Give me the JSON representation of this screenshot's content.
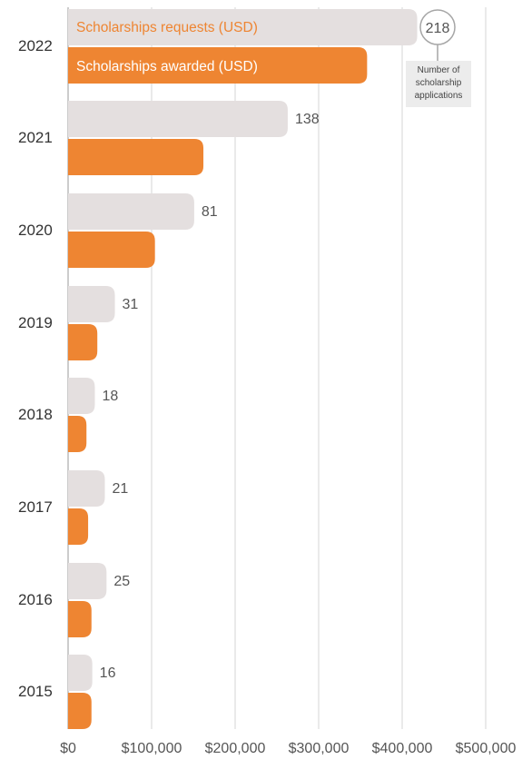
{
  "chart_data": {
    "type": "bar",
    "orientation": "horizontal",
    "categories": [
      "2022",
      "2021",
      "2020",
      "2019",
      "2018",
      "2017",
      "2016",
      "2015"
    ],
    "series": [
      {
        "name": "Scholarships requests (USD)",
        "color": "#e4dfdf",
        "values": [
          418000,
          263000,
          151000,
          56000,
          32000,
          44000,
          46000,
          29000
        ],
        "counts": [
          218,
          138,
          81,
          31,
          18,
          21,
          25,
          16
        ]
      },
      {
        "name": "Scholarships awarded (USD)",
        "color": "#ee8532",
        "values": [
          358000,
          162000,
          104000,
          35000,
          22000,
          24000,
          28000,
          28000
        ]
      }
    ],
    "xlim": [
      0,
      500000
    ],
    "x_ticks": [
      0,
      100000,
      200000,
      300000,
      400000,
      500000
    ],
    "x_tick_labels": [
      "$0",
      "$100,000",
      "$200,000",
      "$300,000",
      "$400,000",
      "$500,000"
    ],
    "grid": true,
    "legend": "inside-top-left",
    "annotation": {
      "value": "218",
      "lines": [
        "Number of",
        "scholarship",
        "applications"
      ]
    }
  }
}
